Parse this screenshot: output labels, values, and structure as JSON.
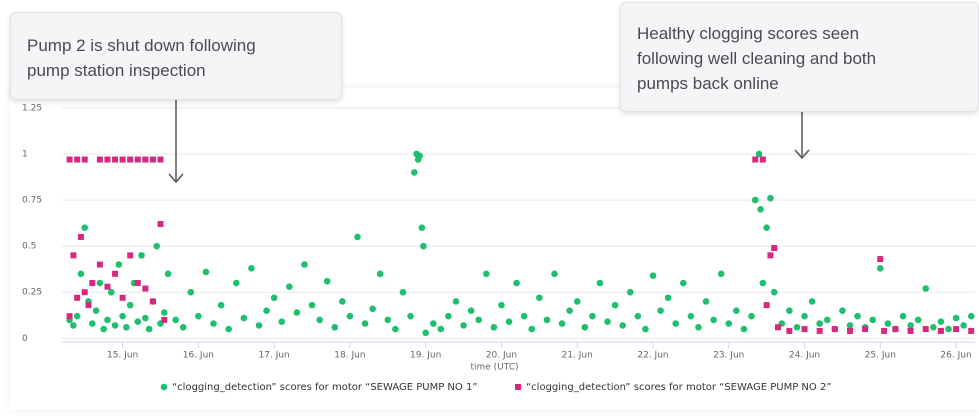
{
  "chart_data": {
    "type": "scatter",
    "xlabel": "time (UTC)",
    "xlim": [
      14.2,
      26.25
    ],
    "ylim": [
      -0.02,
      1.32
    ],
    "xticks": [
      {
        "value": 15,
        "label": "15. Jun"
      },
      {
        "value": 16,
        "label": "16. Jun"
      },
      {
        "value": 17,
        "label": "17. Jun"
      },
      {
        "value": 18,
        "label": "18. Jun"
      },
      {
        "value": 19,
        "label": "19. Jun"
      },
      {
        "value": 20,
        "label": "20. Jun"
      },
      {
        "value": 21,
        "label": "21. Jun"
      },
      {
        "value": 22,
        "label": "22. Jun"
      },
      {
        "value": 23,
        "label": "23. Jun"
      },
      {
        "value": 24,
        "label": "24. Jun"
      },
      {
        "value": 25,
        "label": "25. Jun"
      },
      {
        "value": 26,
        "label": "26. Jun"
      }
    ],
    "yticks": [
      0,
      0.25,
      0.5,
      0.75,
      1,
      1.25
    ],
    "grid": true,
    "legend": "bottom",
    "series": [
      {
        "name": "“clogging_detection” scores for motor “SEWAGE PUMP NO 1”",
        "color": "#1fbf6e",
        "marker": "circle",
        "x": [
          14.3,
          14.35,
          14.4,
          14.45,
          14.5,
          14.55,
          14.6,
          14.65,
          14.7,
          14.75,
          14.8,
          14.85,
          14.9,
          14.95,
          15.0,
          15.05,
          15.1,
          15.15,
          15.2,
          15.25,
          15.3,
          15.35,
          15.4,
          15.45,
          15.5,
          15.55,
          15.6,
          15.7,
          15.8,
          15.9,
          16.0,
          16.1,
          16.2,
          16.3,
          16.4,
          16.5,
          16.6,
          16.7,
          16.8,
          16.9,
          17.0,
          17.1,
          17.2,
          17.3,
          17.4,
          17.5,
          17.6,
          17.7,
          17.8,
          17.9,
          18.0,
          18.1,
          18.2,
          18.3,
          18.4,
          18.5,
          18.6,
          18.7,
          18.8,
          18.85,
          18.88,
          18.9,
          18.92,
          18.95,
          18.97,
          19.0,
          19.1,
          19.2,
          19.3,
          19.4,
          19.5,
          19.6,
          19.7,
          19.8,
          19.9,
          20.0,
          20.1,
          20.2,
          20.3,
          20.4,
          20.5,
          20.6,
          20.7,
          20.8,
          20.9,
          21.0,
          21.1,
          21.2,
          21.3,
          21.4,
          21.5,
          21.6,
          21.7,
          21.8,
          21.9,
          22.0,
          22.1,
          22.2,
          22.3,
          22.4,
          22.5,
          22.6,
          22.7,
          22.8,
          22.9,
          23.0,
          23.1,
          23.2,
          23.3,
          23.35,
          23.4,
          23.42,
          23.45,
          23.5,
          23.55,
          23.6,
          23.7,
          23.8,
          23.9,
          24.0,
          24.1,
          24.2,
          24.3,
          24.4,
          24.5,
          24.6,
          24.7,
          24.8,
          24.9,
          25.0,
          25.1,
          25.2,
          25.3,
          25.4,
          25.5,
          25.6,
          25.7,
          25.8,
          25.9,
          26.0,
          26.1,
          26.2
        ],
        "values": [
          0.1,
          0.07,
          0.12,
          0.35,
          0.6,
          0.2,
          0.08,
          0.15,
          0.3,
          0.05,
          0.1,
          0.25,
          0.07,
          0.4,
          0.12,
          0.06,
          0.18,
          0.3,
          0.09,
          0.45,
          0.11,
          0.05,
          0.2,
          0.5,
          0.08,
          0.14,
          0.35,
          0.1,
          0.06,
          0.25,
          0.12,
          0.36,
          0.08,
          0.18,
          0.05,
          0.3,
          0.11,
          0.38,
          0.07,
          0.15,
          0.22,
          0.09,
          0.28,
          0.14,
          0.4,
          0.18,
          0.1,
          0.31,
          0.06,
          0.2,
          0.12,
          0.55,
          0.08,
          0.16,
          0.35,
          0.1,
          0.05,
          0.25,
          0.12,
          0.9,
          1,
          0.97,
          0.99,
          0.6,
          0.5,
          0.03,
          0.08,
          0.05,
          0.12,
          0.2,
          0.07,
          0.15,
          0.1,
          0.35,
          0.06,
          0.18,
          0.09,
          0.3,
          0.12,
          0.05,
          0.22,
          0.1,
          0.35,
          0.08,
          0.15,
          0.2,
          0.06,
          0.12,
          0.3,
          0.09,
          0.18,
          0.07,
          0.25,
          0.12,
          0.05,
          0.34,
          0.15,
          0.22,
          0.08,
          0.3,
          0.12,
          0.06,
          0.2,
          0.1,
          0.35,
          0.08,
          0.15,
          0.05,
          0.12,
          0.75,
          1,
          0.7,
          0.3,
          0.6,
          0.76,
          0.25,
          0.08,
          0.15,
          0.06,
          0.12,
          0.2,
          0.08,
          0.1,
          0.05,
          0.15,
          0.07,
          0.12,
          0.06,
          0.1,
          0.38,
          0.08,
          0.05,
          0.12,
          0.07,
          0.1,
          0.27,
          0.06,
          0.09,
          0.05,
          0.11,
          0.07,
          0.12
        ]
      },
      {
        "name": "“clogging_detection” scores for motor “SEWAGE PUMP NO 2”",
        "color": "#d6287f",
        "marker": "square",
        "x": [
          14.3,
          14.35,
          14.4,
          14.45,
          14.5,
          14.55,
          14.6,
          14.7,
          14.8,
          14.9,
          15.0,
          15.1,
          15.2,
          15.3,
          15.4,
          15.5,
          15.55,
          14.3,
          14.4,
          14.5,
          14.7,
          14.8,
          14.9,
          15.0,
          15.1,
          15.2,
          15.3,
          15.4,
          15.5,
          23.35,
          23.45,
          23.5,
          23.55,
          23.6,
          23.65,
          23.8,
          24.0,
          24.2,
          24.4,
          24.6,
          24.8,
          25.0,
          25.05,
          25.2,
          25.4,
          25.6,
          25.8,
          26.0,
          26.2
        ],
        "values": [
          0.12,
          0.45,
          0.22,
          0.55,
          0.25,
          0.18,
          0.3,
          0.4,
          0.28,
          0.35,
          0.22,
          0.45,
          0.3,
          0.27,
          0.2,
          0.62,
          0.1,
          0.97,
          0.97,
          0.97,
          0.97,
          0.97,
          0.97,
          0.97,
          0.97,
          0.97,
          0.97,
          0.97,
          0.97,
          0.97,
          0.97,
          0.18,
          0.45,
          0.49,
          0.06,
          0.04,
          0.05,
          0.04,
          0.05,
          0.04,
          0.05,
          0.43,
          0.04,
          0.05,
          0.04,
          0.05,
          0.04,
          0.05,
          0.04
        ]
      }
    ],
    "annotations": [
      {
        "lines": [
          "Pump 2 is shut down following",
          "pump station inspection"
        ]
      },
      {
        "lines": [
          "Healthy clogging scores seen",
          "following well cleaning and both",
          "pumps back online"
        ]
      }
    ]
  }
}
